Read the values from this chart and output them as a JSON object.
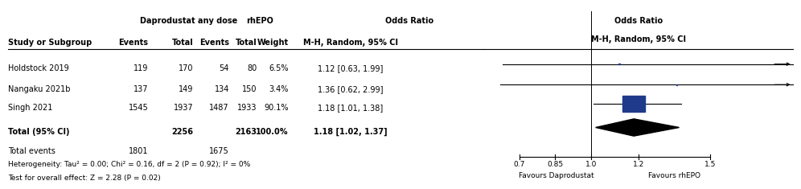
{
  "studies": [
    "Holdstock 2019",
    "Nangaku 2021b",
    "Singh 2021"
  ],
  "dapr_events": [
    119,
    137,
    1545
  ],
  "dapr_total": [
    170,
    149,
    1937
  ],
  "rhepo_events": [
    54,
    134,
    1487
  ],
  "rhepo_total": [
    80,
    150,
    1933
  ],
  "weights": [
    "6.5%",
    "3.4%",
    "90.1%"
  ],
  "or_text": [
    "1.12 [0.63, 1.99]",
    "1.36 [0.62, 2.99]",
    "1.18 [1.01, 1.38]"
  ],
  "or_values": [
    1.12,
    1.36,
    1.18
  ],
  "ci_low": [
    0.63,
    0.62,
    1.01
  ],
  "ci_high": [
    1.99,
    2.99,
    1.38
  ],
  "total_label": "Total (95% CI)",
  "total_dapr": "2256",
  "total_rhepo": "2163",
  "total_weight": "100.0%",
  "total_or_text": "1.18 [1.02, 1.37]",
  "total_or": 1.18,
  "total_ci_low": 1.02,
  "total_ci_high": 1.37,
  "total_events_label": "Total events",
  "total_dapr_events": "1801",
  "total_rhepo_events": "1675",
  "heterogeneity_text": "Heterogeneity: Tau² = 0.00; Chi² = 0.16, df = 2 (P = 0.92); I² = 0%",
  "test_text": "Test for overall effect: Z = 2.28 (P = 0.02)",
  "axis_ticks": [
    0.7,
    0.85,
    1.0,
    1.2,
    1.5
  ],
  "axis_label_left": "Favours Daprodustat",
  "axis_label_right": "Favours rhEPO",
  "xmin": 0.55,
  "xmax": 1.85,
  "study_color": "#1F3A8A",
  "square_sizes": [
    0.065,
    0.035,
    0.9
  ],
  "fig_width": 9.77,
  "fig_height": 2.13,
  "fs": 7.0
}
